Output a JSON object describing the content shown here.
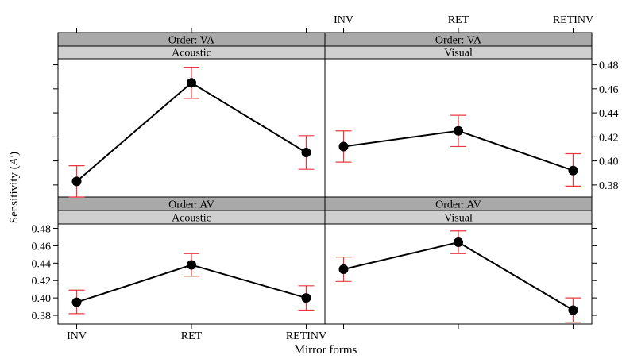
{
  "chart_data": {
    "type": "line",
    "xlabel": "Mirror forms",
    "ylabel": "Sensitivity (A′)",
    "ylabel_main": "Sensitivity (",
    "ylabel_symbol": "A′",
    "ylabel_close": ")",
    "categories": [
      "INV",
      "RET",
      "RETINV"
    ],
    "ylim": [
      0.37,
      0.485
    ],
    "yticks": [
      0.38,
      0.4,
      0.42,
      0.44,
      0.46,
      0.48
    ],
    "ytick_labels": [
      "0.38",
      "0.40",
      "0.42",
      "0.44",
      "0.46",
      "0.48"
    ],
    "error_color": "#e8383d",
    "panels": [
      {
        "id": "va-acoustic",
        "order": "Order: VA",
        "modality": "Acoustic",
        "values": [
          0.383,
          0.465,
          0.407
        ],
        "lower": [
          0.37,
          0.452,
          0.393
        ],
        "upper": [
          0.396,
          0.478,
          0.421
        ]
      },
      {
        "id": "va-visual",
        "order": "Order: VA",
        "modality": "Visual",
        "values": [
          0.412,
          0.425,
          0.392
        ],
        "lower": [
          0.399,
          0.412,
          0.379
        ],
        "upper": [
          0.425,
          0.438,
          0.406
        ]
      },
      {
        "id": "av-acoustic",
        "order": "Order: AV",
        "modality": "Acoustic",
        "values": [
          0.395,
          0.438,
          0.4
        ],
        "lower": [
          0.382,
          0.425,
          0.386
        ],
        "upper": [
          0.409,
          0.451,
          0.414
        ]
      },
      {
        "id": "av-visual",
        "order": "Order: AV",
        "modality": "Visual",
        "values": [
          0.433,
          0.464,
          0.386
        ],
        "lower": [
          0.419,
          0.451,
          0.372
        ],
        "upper": [
          0.447,
          0.477,
          0.4
        ]
      }
    ]
  }
}
